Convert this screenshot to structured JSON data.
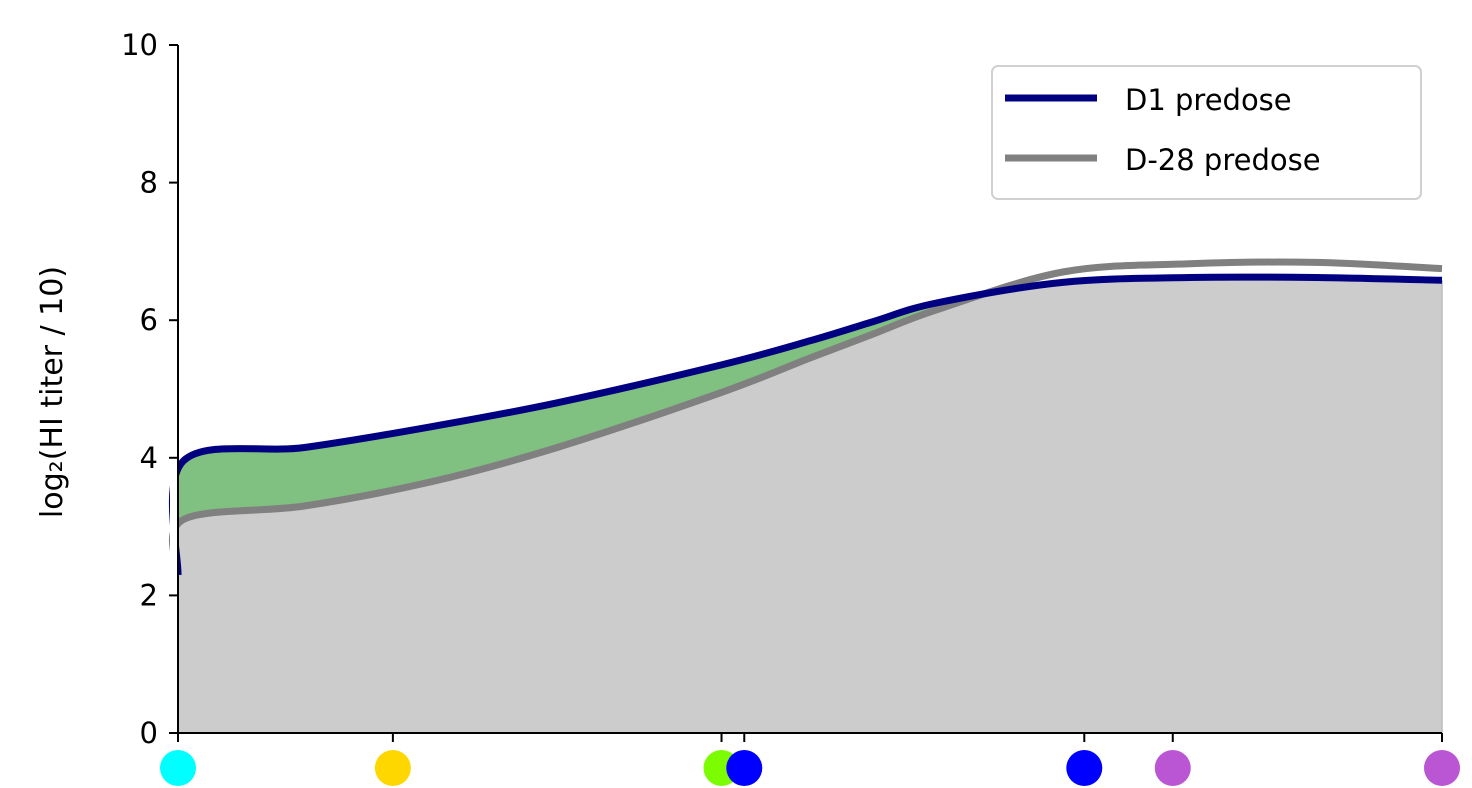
{
  "chart_data": {
    "type": "area",
    "ylabel": "log₂(HI titer / 10)",
    "ylim": [
      0,
      10
    ],
    "yticks": [
      0,
      2,
      4,
      6,
      8,
      10
    ],
    "ytick_labels": [
      "0",
      "2",
      "4",
      "6",
      "8",
      "10"
    ],
    "xlim": [
      0,
      1
    ],
    "grid": false,
    "legend_position": "top-right",
    "colors": {
      "d1_line": "#000080",
      "d28_line": "#808080",
      "fill_gain": "#80c080",
      "fill_base": "#cccccc",
      "legend_border": "#d0d0d0"
    },
    "series": [
      {
        "name": "D1 predose",
        "color": "#000080",
        "x": [
          0,
          0.004,
          0.1,
          0.2,
          0.3,
          0.43,
          0.5,
          0.55,
          0.6,
          0.7,
          0.8,
          0.9,
          1.0
        ],
        "y": [
          2.3,
          3.95,
          4.15,
          4.45,
          4.8,
          5.35,
          5.7,
          5.98,
          6.25,
          6.55,
          6.62,
          6.62,
          6.58
        ]
      },
      {
        "name": "D-28 predose",
        "color": "#808080",
        "x": [
          0,
          0.004,
          0.1,
          0.2,
          0.3,
          0.43,
          0.5,
          0.55,
          0.6,
          0.7,
          0.8,
          0.9,
          1.0
        ],
        "y": [
          2.3,
          3.1,
          3.3,
          3.65,
          4.15,
          4.95,
          5.45,
          5.8,
          6.15,
          6.7,
          6.82,
          6.84,
          6.75
        ]
      }
    ],
    "markers": [
      {
        "x": 0.0,
        "color": "#00ffff"
      },
      {
        "x": 0.17,
        "color": "#ffd700"
      },
      {
        "x": 0.43,
        "color": "#7cfc00"
      },
      {
        "x": 0.448,
        "color": "#0000ff"
      },
      {
        "x": 0.717,
        "color": "#0000ff"
      },
      {
        "x": 0.787,
        "color": "#ba55d3"
      },
      {
        "x": 1.0,
        "color": "#ba55d3"
      }
    ],
    "xtick_positions": [
      0,
      0.17,
      0.43,
      0.448,
      0.717,
      0.787,
      1.0
    ]
  }
}
